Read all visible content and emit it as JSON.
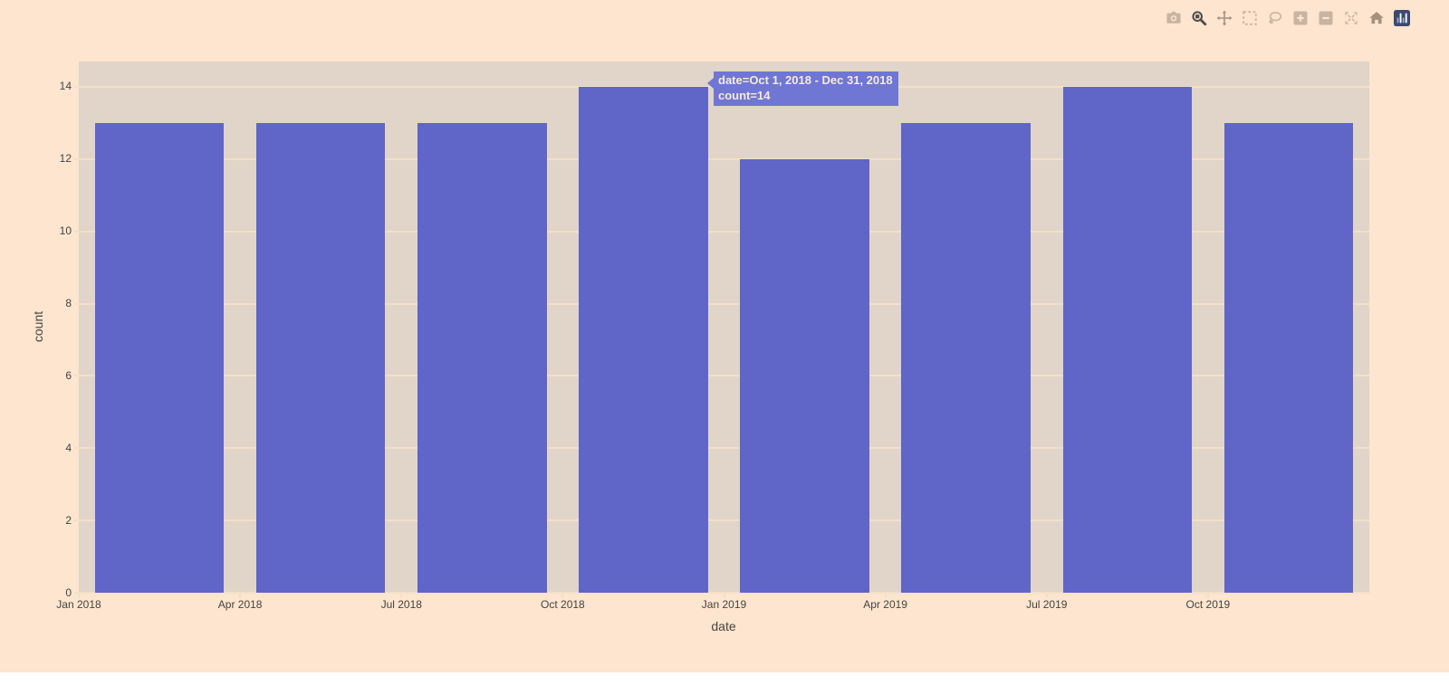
{
  "page": {
    "background_color": "#fde5cf",
    "bottom_strip_color": "#ffffff"
  },
  "modebar": {
    "icons": [
      {
        "name": "camera-icon",
        "active": false
      },
      {
        "name": "zoom-icon",
        "active": true
      },
      {
        "name": "pan-icon",
        "active": false
      },
      {
        "name": "box-select-icon",
        "active": false
      },
      {
        "name": "lasso-icon",
        "active": false
      },
      {
        "name": "zoom-in-icon",
        "active": false
      },
      {
        "name": "zoom-out-icon",
        "active": false
      },
      {
        "name": "autoscale-icon",
        "active": false
      },
      {
        "name": "home-icon",
        "active": false
      },
      {
        "name": "plotly-logo-icon",
        "active": false
      }
    ],
    "icon_color": "#c9b4a1",
    "active_icon_color": "#4e4d4b",
    "logo_color": "#3b4a70"
  },
  "chart_data": {
    "type": "bar",
    "title": "",
    "xlabel": "date",
    "ylabel": "count",
    "categories": [
      "Jan 2018",
      "Apr 2018",
      "Jul 2018",
      "Oct 2018",
      "Jan 2019",
      "Apr 2019",
      "Jul 2019",
      "Oct 2019"
    ],
    "values": [
      13,
      13,
      13,
      14,
      12,
      13,
      14,
      13
    ],
    "y_ticks": [
      0,
      2,
      4,
      6,
      8,
      10,
      12,
      14
    ],
    "y_tick_labels": [
      "0",
      "2",
      "4",
      "6",
      "8",
      "10",
      "12",
      "14"
    ],
    "ylim": [
      0,
      14.7
    ],
    "grid": "horizontal",
    "legend": "none",
    "bar_color": "#6065c8",
    "plot_bg_color": "#e1d4c8",
    "grid_color": "#f3e0c9",
    "tick_text_color": "#454340"
  },
  "tooltip": {
    "line1": "date=Oct 1, 2018 - Dec 31, 2018",
    "line2": "count=14",
    "bg_color": "#7076d3",
    "text_color": "#f6ead9"
  }
}
